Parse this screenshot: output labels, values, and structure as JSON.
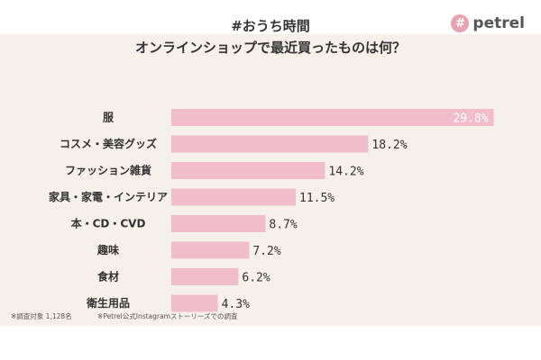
{
  "header": {
    "title_line1": "#おうち時間",
    "title_line2": "オンラインショップで最近買ったものは何？"
  },
  "logo": {
    "icon": "hash-badge-icon",
    "icon_glyph": "#",
    "text": "petrel"
  },
  "footnote": {
    "respondents": "※調査対象 1,128名",
    "source": "※Petrel公式Instagramストーリーズでの調査"
  },
  "colors": {
    "bar": "#f2bdca",
    "panel": "#f5f1ea",
    "text": "#333333",
    "inside_label": "#ffffff"
  },
  "chart_data": {
    "type": "bar",
    "orientation": "horizontal",
    "title": "オンラインショップで最近買ったものは何？",
    "categories": [
      "服",
      "コスメ・美容グッズ",
      "ファッション雑貨",
      "家具・家電・インテリア",
      "本・CD・CVD",
      "趣味",
      "食材",
      "衛生用品"
    ],
    "values": [
      29.8,
      18.2,
      14.2,
      11.5,
      8.7,
      7.2,
      6.2,
      4.3
    ],
    "value_labels": [
      "29.8%",
      "18.2%",
      "14.2%",
      "11.5%",
      "8.7%",
      "7.2%",
      "6.2%",
      "4.3%"
    ],
    "xlim": [
      0,
      30
    ],
    "grid": false,
    "legend": "none"
  }
}
